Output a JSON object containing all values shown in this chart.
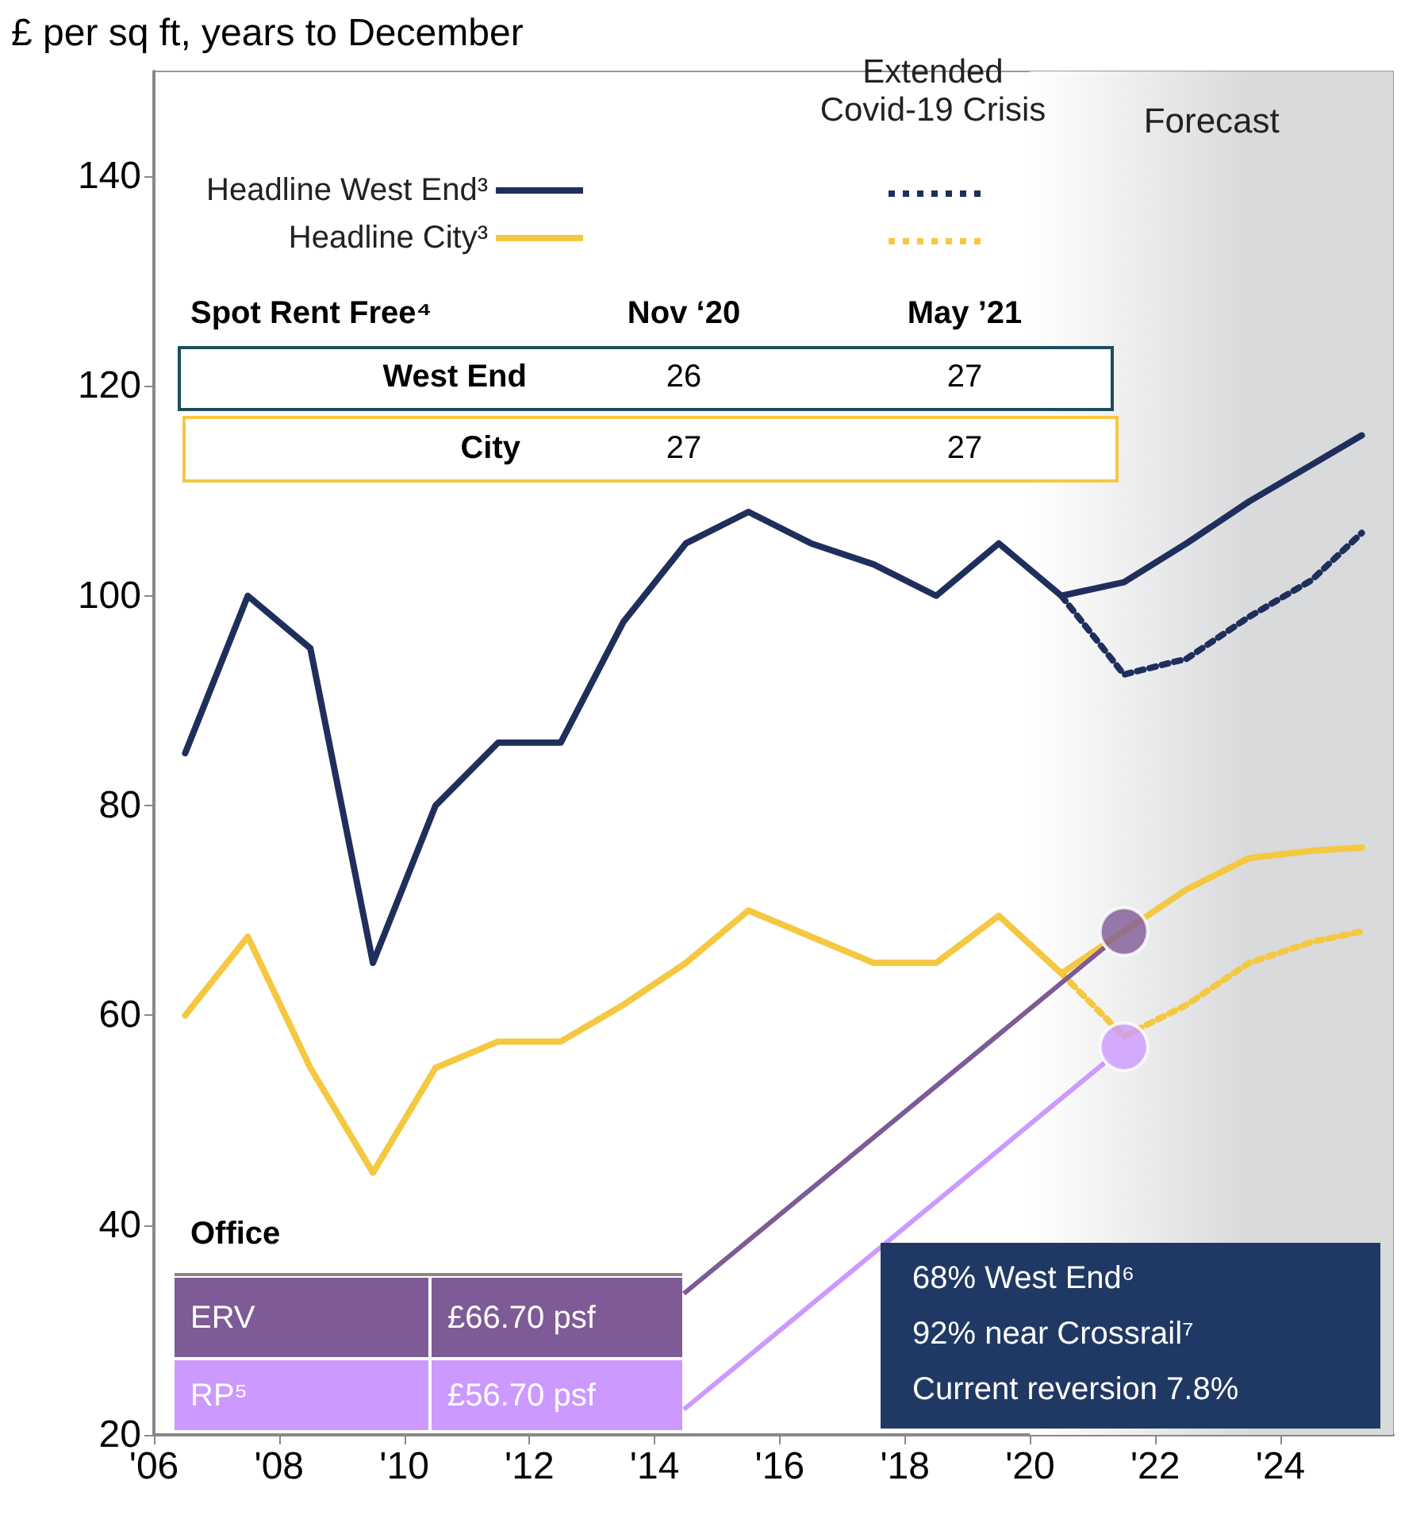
{
  "chart_data": {
    "type": "line",
    "ylabel": "£ per sq ft, years to December",
    "xlim": [
      2006,
      2025.8
    ],
    "ylim": [
      20,
      150
    ],
    "xticks": [
      {
        "value": 2006,
        "label": "'06"
      },
      {
        "value": 2008,
        "label": "'08"
      },
      {
        "value": 2010,
        "label": "'10"
      },
      {
        "value": 2012,
        "label": "'12"
      },
      {
        "value": 2014,
        "label": "'14"
      },
      {
        "value": 2016,
        "label": "'16"
      },
      {
        "value": 2018,
        "label": "'18"
      },
      {
        "value": 2020,
        "label": "'20"
      },
      {
        "value": 2022,
        "label": "'22"
      },
      {
        "value": 2024,
        "label": "'24"
      }
    ],
    "yticks": [
      20,
      40,
      60,
      80,
      100,
      120,
      140
    ],
    "grid": false,
    "legend": "top left",
    "marker": "none",
    "series": [
      {
        "name": "Headline West End³",
        "color": "#1f2f5c",
        "line_style": "solid",
        "x": [
          2006.5,
          2007.5,
          2008.5,
          2009.5,
          2010.5,
          2011.5,
          2012.5,
          2013.5,
          2014.5,
          2015.5,
          2016.5,
          2017.5,
          2018.5,
          2019.5,
          2020.5,
          2021.5,
          2022.5,
          2023.5,
          2024.5,
          2025.3
        ],
        "values": [
          85,
          100,
          95,
          65,
          80,
          86,
          86,
          97.5,
          105,
          108,
          105,
          103,
          100,
          105,
          100,
          101.3,
          105,
          109,
          112.5,
          115.3
        ]
      },
      {
        "name": "Headline City³",
        "color": "#f5c842",
        "line_style": "solid",
        "x": [
          2006.5,
          2007.5,
          2008.5,
          2009.5,
          2010.5,
          2011.5,
          2012.5,
          2013.5,
          2014.5,
          2015.5,
          2016.5,
          2017.5,
          2018.5,
          2019.5,
          2020.5,
          2021.5,
          2022.5,
          2023.5,
          2024.5,
          2025.3
        ],
        "values": [
          60,
          67.5,
          55,
          45,
          55,
          57.5,
          57.5,
          61,
          65,
          70,
          67.5,
          65,
          65,
          69.5,
          64,
          null,
          72,
          75,
          75.7,
          76
        ]
      },
      {
        "color": "#1f2f5c",
        "line_style": "dotted",
        "x": [
          2020.5,
          2021.5,
          2022.5,
          2023.5,
          2024.5,
          2025.3
        ],
        "values": [
          100,
          92.5,
          94,
          98,
          101.5,
          106
        ]
      },
      {
        "color": "#f5c842",
        "line_style": "dotted",
        "x": [
          2020.5,
          2021.5,
          2022.5,
          2023.5,
          2024.5,
          2025.3
        ],
        "values": [
          64,
          58,
          61,
          65,
          67,
          68
        ]
      },
      {
        "type": "scatter",
        "marker": "circle",
        "x": [
          2021.5,
          2021.5
        ],
        "values": [
          68,
          57
        ],
        "colors": [
          "#7e5a96",
          "#cc99ff"
        ]
      }
    ],
    "bands": [
      {
        "axis": "x",
        "from": 2020,
        "to": 2025.8,
        "label": "Forecast",
        "color": "#d9dadc"
      }
    ],
    "annotations": [
      "Extended Covid-19 Crisis",
      "Spot Rent Free⁴",
      "Nov ‘20",
      "May ’21",
      "West End",
      "26",
      "27",
      "City",
      "27",
      "27",
      "Office",
      "ERV",
      "£66.70 psf",
      "RP⁵",
      "£56.70 psf",
      "68% West End⁶",
      "92% near Crossrail⁷",
      "Current reversion 7.8%"
    ]
  }
}
